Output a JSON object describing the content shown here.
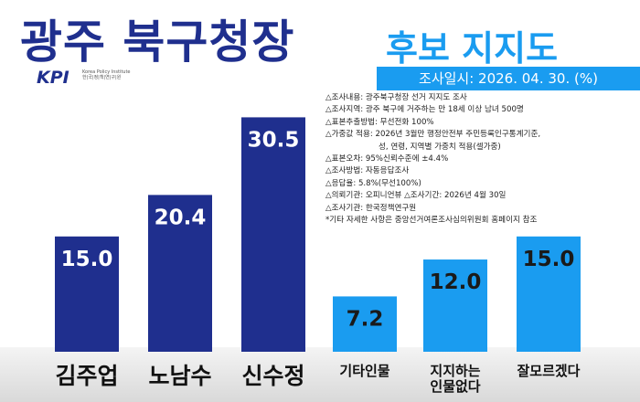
{
  "header": {
    "title": "광주 북구청장",
    "subtitle": "후보 지지도",
    "survey_date": "조사일시: 2026. 04. 30.    (%)"
  },
  "logo": {
    "mark": "KPI",
    "org_en": "Korea Policy Institute",
    "org_ko": "한|국|정|책|연|구|원"
  },
  "notes": [
    "△조사내용: 광주북구청장 선거 지지도 조사",
    "△조사지역: 광주 북구에 거주하는 만 18세 이상 남녀 500명",
    "△표본추출방법: 무선전화 100%",
    "△가중값 적용: 2026년 3월만 행정안전부 주민등록인구통계기준,",
    "성, 연령, 지역별 가중치 적용(셀가중)",
    "△표본오차: 95%신뢰수준에 ±4.4%",
    "△조사방법: 자동응답조사",
    "△응답율: 5.8%(무선100%)",
    "△의뢰기관: 오피니언뷰    △조사기간: 2026년 4월 30일",
    "△조사기관: 한국정책연구원",
    "*기타 자세한 사항은 중앙선거여론조사심의위원회 홈페이지 참조"
  ],
  "chart_data": {
    "type": "bar",
    "categories": [
      "김주업",
      "노남수",
      "신수정",
      "기타인물",
      "지지하는 인물없다",
      "잘모르겠다"
    ],
    "values": [
      15.0,
      20.4,
      30.5,
      7.2,
      12.0,
      15.0
    ],
    "value_labels": [
      "15.0",
      "20.4",
      "30.5",
      "7.2",
      "12.0",
      "15.0"
    ],
    "bar_colors": [
      "#1f2f8e",
      "#1f2f8e",
      "#1f2f8e",
      "#1a9cf0",
      "#1a9cf0",
      "#1a9cf0"
    ],
    "title": "",
    "xlabel": "",
    "ylabel": "",
    "ylim": [
      0,
      31.5
    ]
  }
}
